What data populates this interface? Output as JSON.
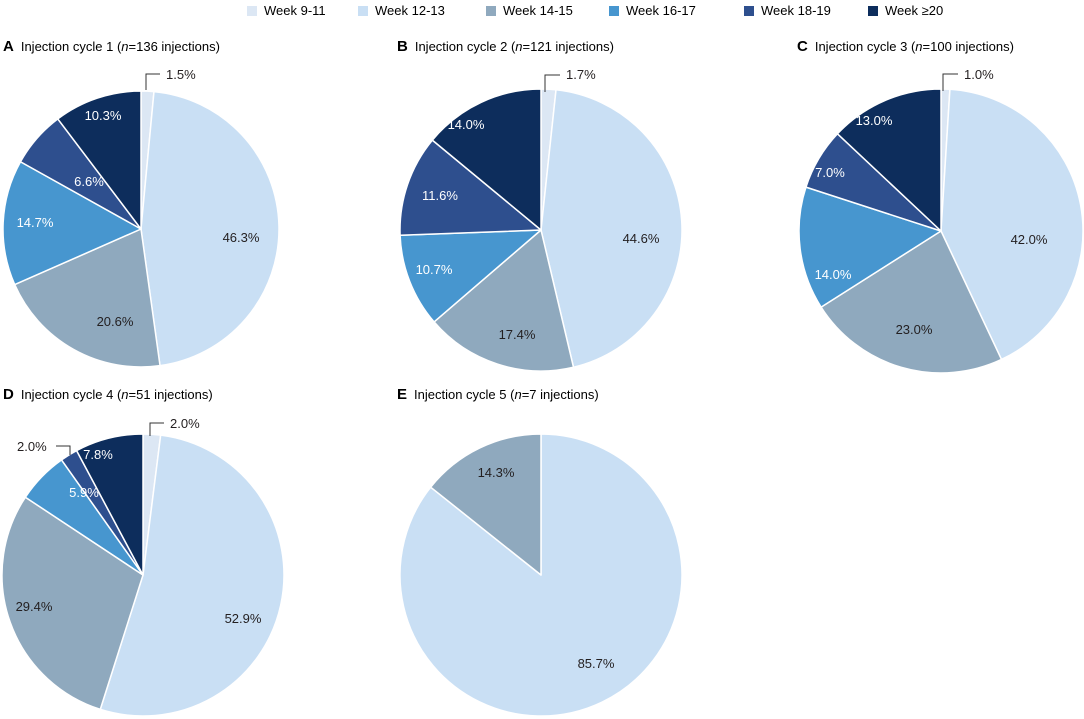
{
  "legend": [
    {
      "label": "Week 9-11",
      "color": "#dce7f4"
    },
    {
      "label": "Week 12-13",
      "color": "#c9dff4"
    },
    {
      "label": "Week 14-15",
      "color": "#8fa9be"
    },
    {
      "label": "Week 16-17",
      "color": "#4796cf"
    },
    {
      "label": "Week 18-19",
      "color": "#2e4f8e"
    },
    {
      "label": "Week ≥20",
      "color": "#0d2d5c"
    }
  ],
  "chart_data": [
    {
      "type": "pie",
      "letter": "A",
      "title_prefix": "Injection cycle 1 (",
      "title_n": "n",
      "title_suffix": "=136 injections)",
      "categories": [
        "Week 9-11",
        "Week 12-13",
        "Week 14-15",
        "Week 16-17",
        "Week 18-19",
        "Week ≥20"
      ],
      "values": [
        1.5,
        46.3,
        20.6,
        14.7,
        6.6,
        10.3
      ],
      "labels": [
        "1.5%",
        "46.3%",
        "20.6%",
        "14.7%",
        "6.6%",
        "10.3%"
      ]
    },
    {
      "type": "pie",
      "letter": "B",
      "title_prefix": "Injection cycle 2 (",
      "title_n": "n",
      "title_suffix": "=121 injections)",
      "categories": [
        "Week 9-11",
        "Week 12-13",
        "Week 14-15",
        "Week 16-17",
        "Week 18-19",
        "Week ≥20"
      ],
      "values": [
        1.7,
        44.6,
        17.4,
        10.7,
        11.6,
        14.0
      ],
      "labels": [
        "1.7%",
        "44.6%",
        "17.4%",
        "10.7%",
        "11.6%",
        "14.0%"
      ]
    },
    {
      "type": "pie",
      "letter": "C",
      "title_prefix": "Injection cycle 3 (",
      "title_n": "n",
      "title_suffix": "=100 injections)",
      "categories": [
        "Week 9-11",
        "Week 12-13",
        "Week 14-15",
        "Week 16-17",
        "Week 18-19",
        "Week ≥20"
      ],
      "values": [
        1.0,
        42.0,
        23.0,
        14.0,
        7.0,
        13.0
      ],
      "labels": [
        "1.0%",
        "42.0%",
        "23.0%",
        "14.0%",
        "7.0%",
        "13.0%"
      ]
    },
    {
      "type": "pie",
      "letter": "D",
      "title_prefix": "Injection cycle 4 (",
      "title_n": "n",
      "title_suffix": "=51 injections)",
      "categories": [
        "Week 9-11",
        "Week 12-13",
        "Week 14-15",
        "Week 16-17",
        "Week 18-19",
        "Week ≥20"
      ],
      "values": [
        2.0,
        52.9,
        29.4,
        5.9,
        2.0,
        7.8
      ],
      "labels": [
        "2.0%",
        "52.9%",
        "29.4%",
        "5.9%",
        "2.0%",
        "7.8%"
      ]
    },
    {
      "type": "pie",
      "letter": "E",
      "title_prefix": "Injection cycle 5 (",
      "title_n": "n",
      "title_suffix": "=7 injections)",
      "categories": [
        "Week 9-11",
        "Week 12-13",
        "Week 14-15",
        "Week 16-17",
        "Week 18-19",
        "Week ≥20"
      ],
      "values": [
        0,
        85.7,
        14.3,
        0,
        0,
        0
      ],
      "labels": [
        "",
        "85.7%",
        "14.3%",
        "",
        "",
        ""
      ]
    }
  ]
}
